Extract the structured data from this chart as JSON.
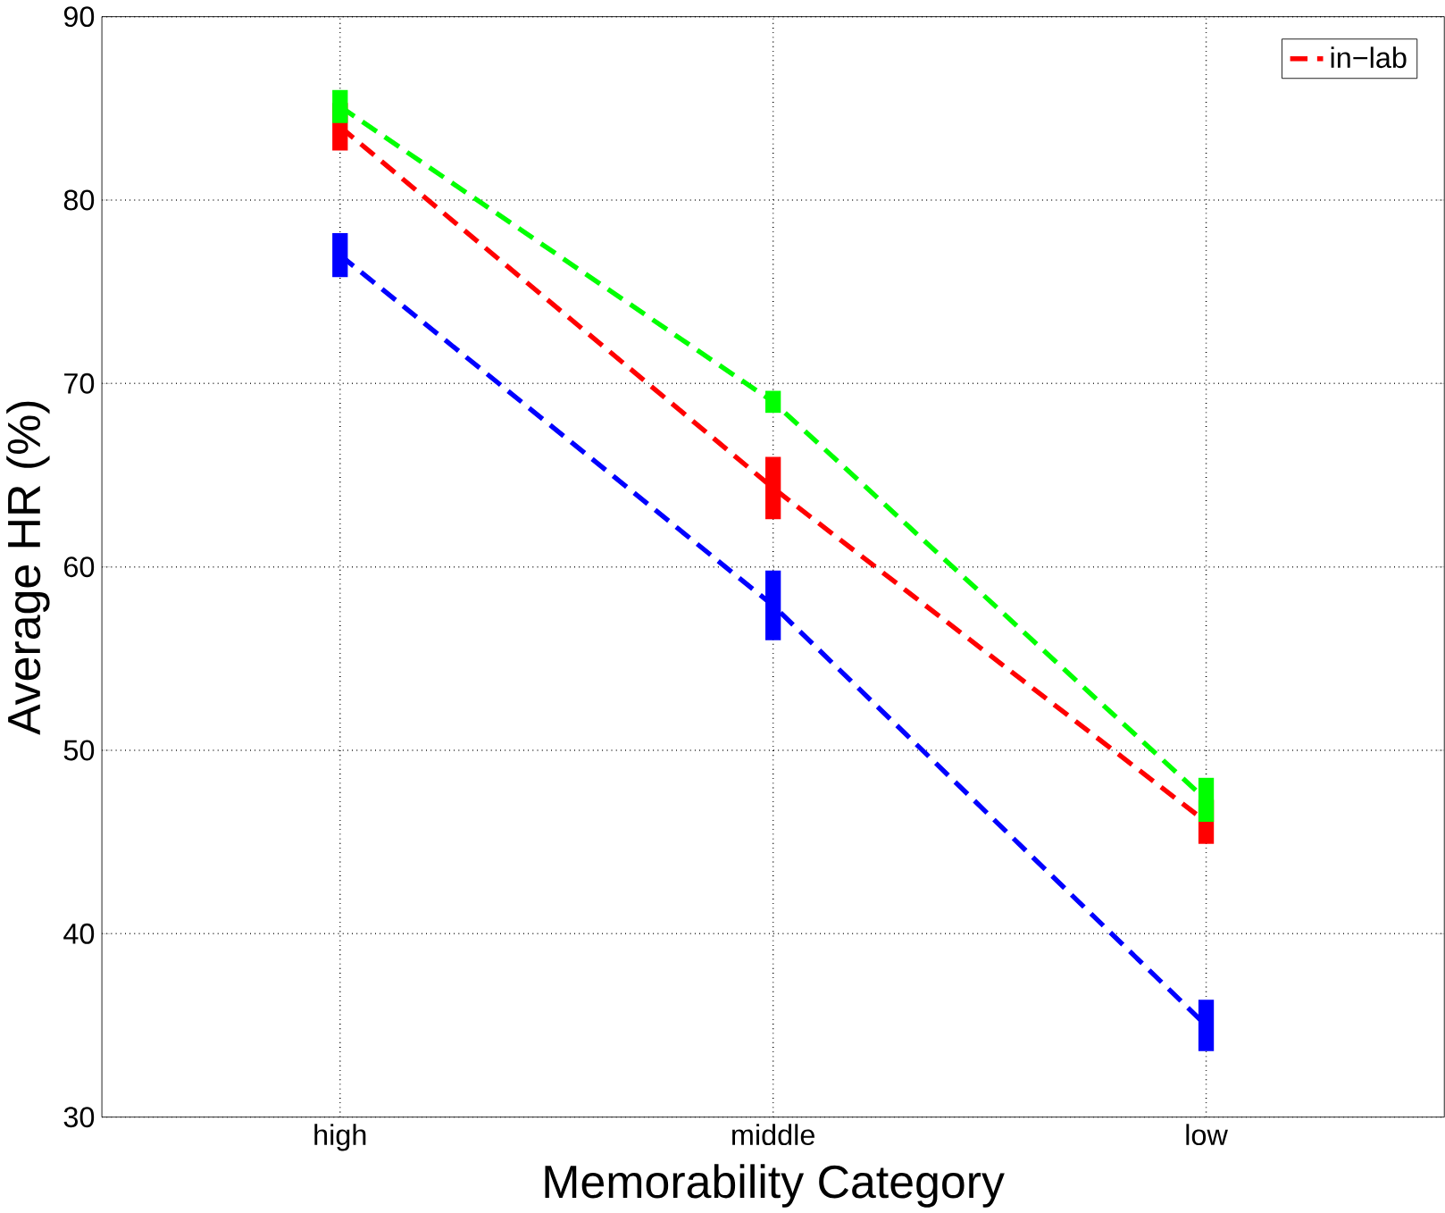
{
  "chart_data": {
    "type": "line",
    "xlabel": "Memorability Category",
    "ylabel": "Average HR (%)",
    "categories": [
      "high",
      "middle",
      "low"
    ],
    "series": [
      {
        "color": "#0000ff",
        "values": [
          77.0,
          57.9,
          35.0
        ],
        "errors": [
          1.2,
          1.9,
          1.4
        ]
      },
      {
        "name": "in−lab",
        "color": "#ff0000",
        "values": [
          84.0,
          64.3,
          46.1
        ],
        "errors": [
          1.3,
          1.7,
          1.2
        ]
      },
      {
        "color": "#00ff00",
        "values": [
          85.1,
          69.0,
          47.3
        ],
        "errors": [
          0.9,
          0.6,
          1.2
        ]
      }
    ],
    "ylim": [
      30,
      90
    ],
    "yticks": [
      30,
      40,
      50,
      60,
      70,
      80,
      90
    ],
    "grid": true,
    "legend": "top right",
    "line_style": "dashed",
    "marker": "none"
  }
}
